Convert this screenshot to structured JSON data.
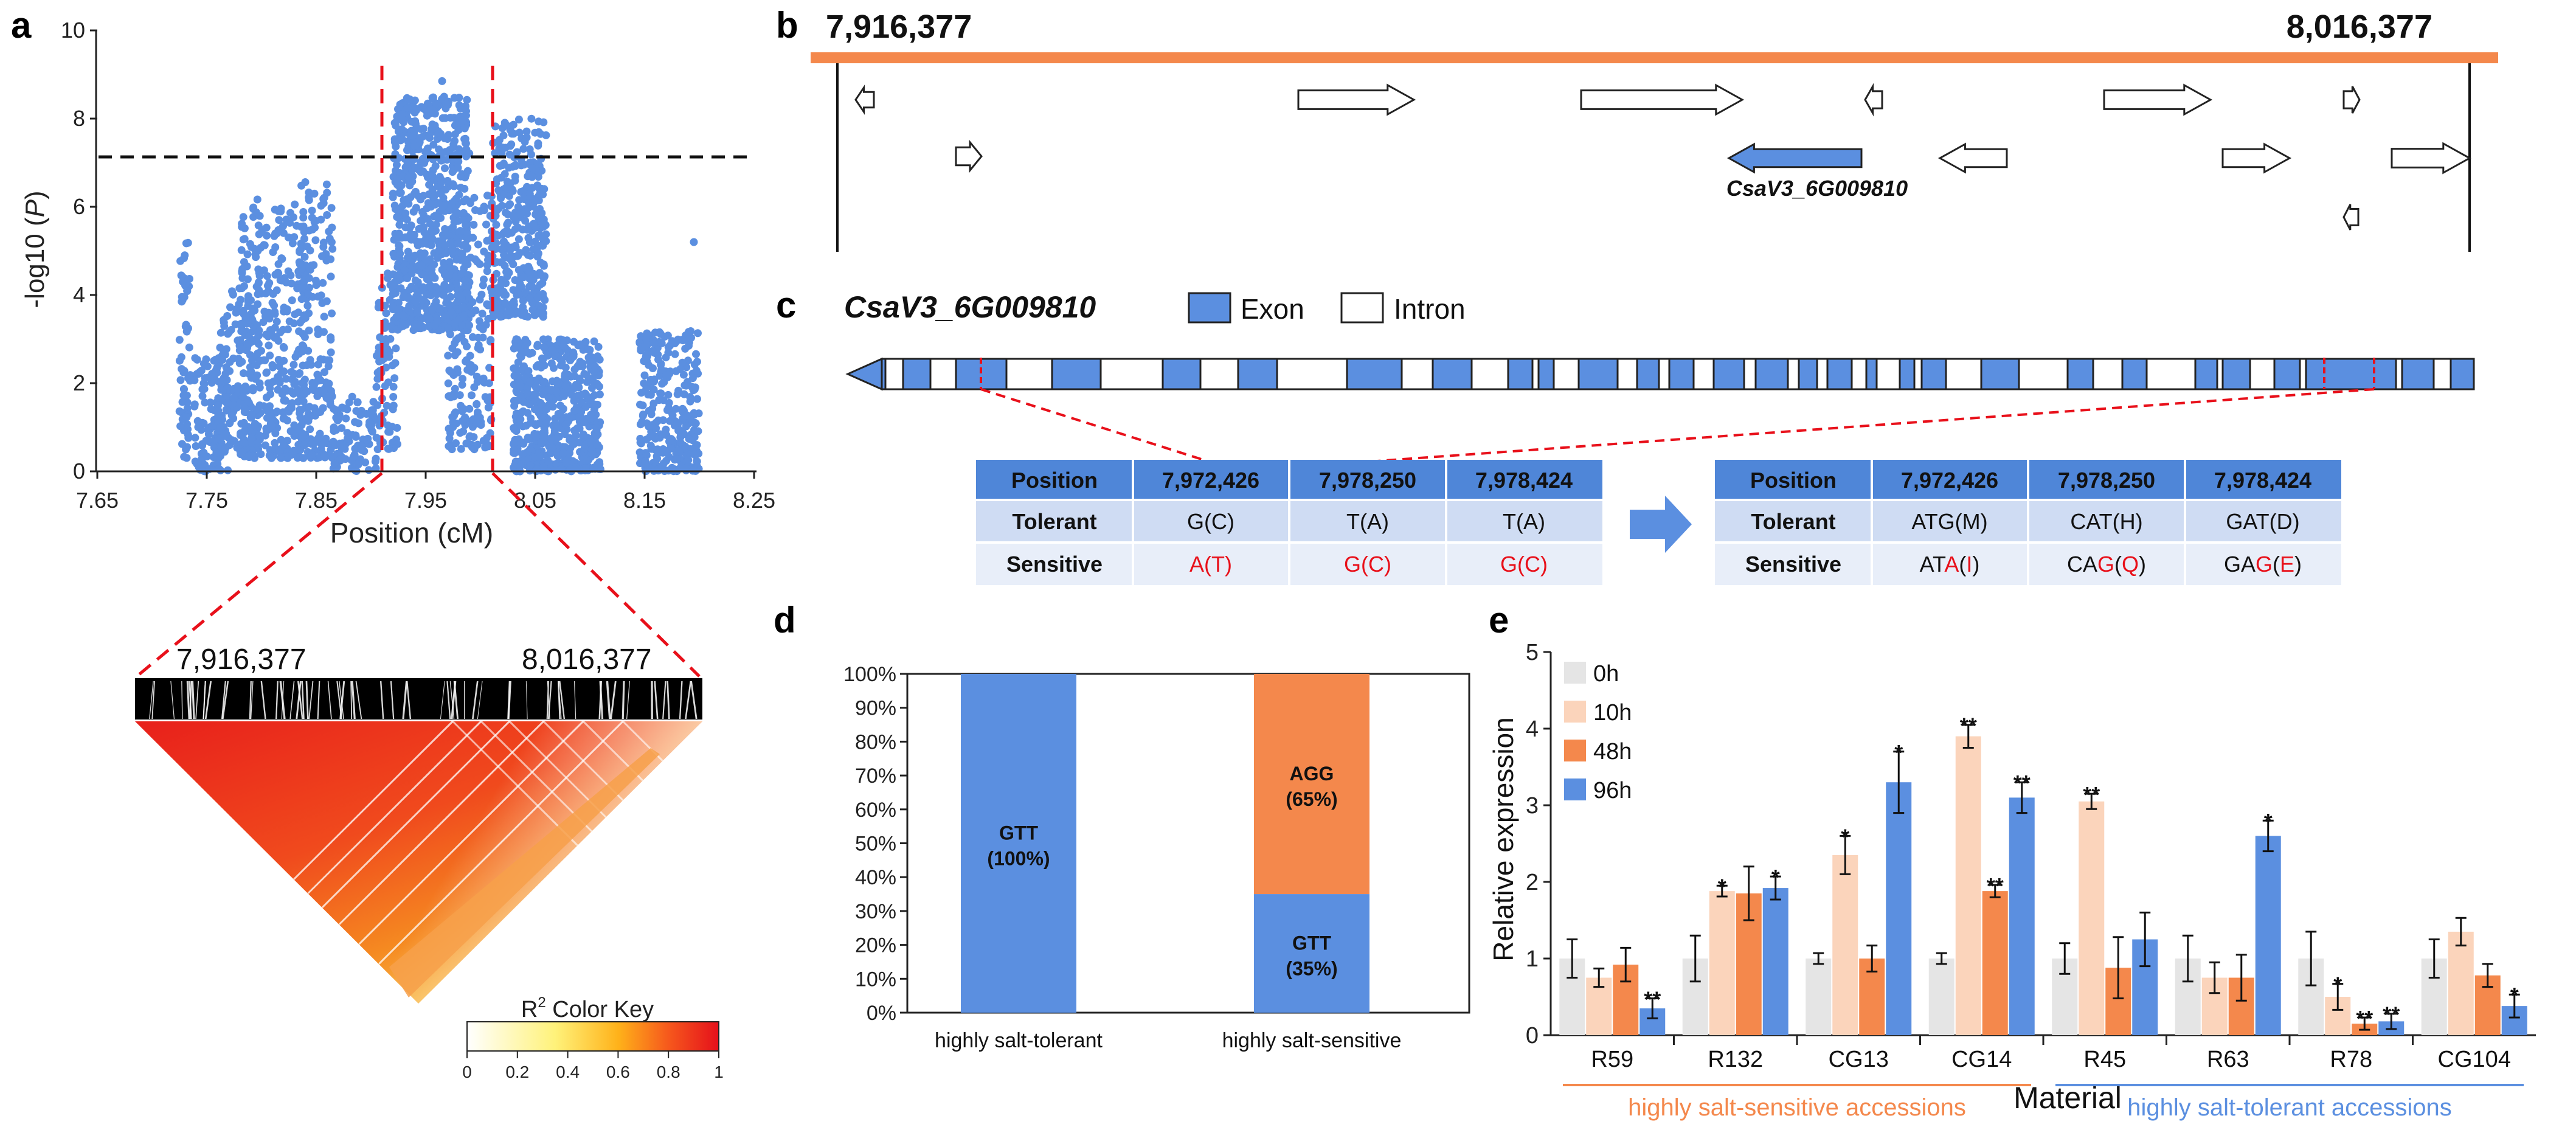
{
  "panel_letters": {
    "a": "a",
    "b": "b",
    "c": "c",
    "d": "d",
    "e": "e"
  },
  "colors": {
    "blue": "#5b8fe0",
    "orange": "#f4884c",
    "light_orange": "#fbd4bb",
    "grey": "#e5e5e5",
    "red": "#e8101a"
  },
  "panel_b": {
    "start_label": "7,916,377",
    "end_label": "8,016,377",
    "gene_label": "CsaV3_6G009810"
  },
  "panel_c": {
    "gene_title": "CsaV3_6G009810",
    "legend": {
      "exon": "Exon",
      "intron": "Intron"
    },
    "table_left": {
      "header": [
        "Position",
        "7,972,426",
        "7,978,250",
        "7,978,424"
      ],
      "tolerant": [
        "Tolerant",
        "G(C)",
        "T(A)",
        "T(A)"
      ],
      "sensitive_label": "Sensitive",
      "sensitive": [
        {
          "a": "A",
          "b": "(T)"
        },
        {
          "a": "G",
          "b": "(C)"
        },
        {
          "a": "G",
          "b": "(C)"
        }
      ]
    },
    "table_right": {
      "header": [
        "Position",
        "7,972,426",
        "7,978,250",
        "7,978,424"
      ],
      "tolerant": [
        "Tolerant",
        "ATG(M)",
        "CAT(H)",
        "GAT(D)"
      ],
      "sensitive_label": "Sensitive",
      "sensitive": [
        {
          "p": "AT",
          "r1": "A",
          "m": "(",
          "r2": "I",
          "e": ")"
        },
        {
          "p": "CA",
          "r1": "G",
          "m": "(",
          "r2": "Q",
          "e": ")"
        },
        {
          "p": "GA",
          "r1": "G",
          "m": "(",
          "r2": "E",
          "e": ")"
        }
      ]
    }
  },
  "ld_block": {
    "start_label": "7,916,377",
    "end_label": "8,016,377",
    "color_key_title": "R2 Color Key",
    "r2": "R",
    "sup": "2",
    "key_rest": " Color Key",
    "key_ticks": [
      "0",
      "0.2",
      "0.4",
      "0.6",
      "0.8",
      "1"
    ]
  },
  "chart_data": [
    {
      "id": "manhattan",
      "type": "scatter",
      "xlabel": "Position (cM)",
      "ylabel_prefix": "-log10 (",
      "ylabel_italic": "P",
      "ylabel_suffix": ")",
      "xlim": [
        7.65,
        8.25
      ],
      "ylim": [
        0,
        10
      ],
      "xticks": [
        "7.65",
        "7.75",
        "7.85",
        "7.95",
        "8.05",
        "8.15",
        "8.25"
      ],
      "yticks": [
        "0",
        "2",
        "4",
        "6",
        "8",
        "10"
      ],
      "threshold": 7.1,
      "region_lines_cm": [
        7.913,
        8.015
      ],
      "clusters": [
        {
          "x": [
            7.725,
            7.735
          ],
          "y": [
            0.3,
            5.2
          ],
          "n": 60
        },
        {
          "x": [
            7.738,
            7.77
          ],
          "y": [
            0,
            2.6
          ],
          "n": 120
        },
        {
          "x": [
            7.76,
            7.8
          ],
          "y": [
            0.5,
            4.2
          ],
          "n": 150
        },
        {
          "x": [
            7.78,
            7.84
          ],
          "y": [
            0.3,
            6.2
          ],
          "n": 380
        },
        {
          "x": [
            7.835,
            7.865
          ],
          "y": [
            0.3,
            6.6
          ],
          "n": 180
        },
        {
          "x": [
            7.865,
            7.905
          ],
          "y": [
            0,
            1.7
          ],
          "n": 90
        },
        {
          "x": [
            7.905,
            7.925
          ],
          "y": [
            0.5,
            4.5
          ],
          "n": 90
        },
        {
          "x": [
            7.92,
            7.99
          ],
          "y": [
            3.2,
            8.5
          ],
          "n": 700
        },
        {
          "x": [
            7.97,
            8.01
          ],
          "y": [
            0.5,
            6.3
          ],
          "n": 200
        },
        {
          "x": [
            8.01,
            8.06
          ],
          "y": [
            3.5,
            8.0
          ],
          "n": 360
        },
        {
          "x": [
            8.03,
            8.11
          ],
          "y": [
            0,
            3.0
          ],
          "n": 560
        },
        {
          "x": [
            8.145,
            8.2
          ],
          "y": [
            0,
            3.2
          ],
          "n": 290
        }
      ]
    },
    {
      "id": "stacked_bar",
      "type": "bar",
      "categories": [
        "highly salt-tolerant",
        "highly salt-sensitive"
      ],
      "series": [
        {
          "name": "GTT",
          "values": [
            100,
            35
          ],
          "labels": [
            "GTT",
            "GTT"
          ],
          "pct_labels": [
            "(100%)",
            "(35%)"
          ]
        },
        {
          "name": "AGG",
          "values": [
            0,
            65
          ],
          "labels": [
            "",
            "AGG"
          ],
          "pct_labels": [
            "",
            "(65%)"
          ]
        }
      ],
      "ylim": [
        0,
        100
      ],
      "yticks": [
        "0%",
        "10%",
        "20%",
        "30%",
        "40%",
        "50%",
        "60%",
        "70%",
        "80%",
        "90%",
        "100%"
      ]
    },
    {
      "id": "expression",
      "type": "bar",
      "title": "",
      "xlabel": "Material",
      "ylabel": "Relative expression",
      "ylim": [
        0,
        5
      ],
      "yticks": [
        "0",
        "1",
        "2",
        "3",
        "4",
        "5"
      ],
      "categories": [
        "R59",
        "R132",
        "CG13",
        "CG14",
        "R45",
        "R63",
        "R78",
        "CG104"
      ],
      "series": [
        {
          "name": "0h",
          "values": [
            1.0,
            1.0,
            1.0,
            1.0,
            1.0,
            1.0,
            1.0,
            1.0
          ],
          "errors": [
            0.25,
            0.3,
            0.07,
            0.07,
            0.2,
            0.3,
            0.35,
            0.25
          ],
          "sig": [
            "",
            "",
            "",
            "",
            "",
            "",
            "",
            ""
          ]
        },
        {
          "name": "10h",
          "values": [
            0.75,
            1.88,
            2.35,
            3.9,
            3.05,
            0.75,
            0.5,
            1.35
          ],
          "errors": [
            0.12,
            0.07,
            0.25,
            0.15,
            0.1,
            0.2,
            0.17,
            0.18
          ],
          "sig": [
            "",
            "*",
            "*",
            "**",
            "**",
            "",
            "*",
            ""
          ]
        },
        {
          "name": "48h",
          "values": [
            0.92,
            1.85,
            1.0,
            1.88,
            0.88,
            0.75,
            0.15,
            0.78
          ],
          "errors": [
            0.22,
            0.35,
            0.17,
            0.08,
            0.4,
            0.3,
            0.08,
            0.15
          ],
          "sig": [
            "",
            "",
            "",
            "**",
            "",
            "",
            "**",
            ""
          ]
        },
        {
          "name": "96h",
          "values": [
            0.35,
            1.92,
            3.3,
            3.1,
            1.25,
            2.6,
            0.18,
            0.38
          ],
          "errors": [
            0.13,
            0.15,
            0.4,
            0.2,
            0.35,
            0.2,
            0.1,
            0.15
          ],
          "sig": [
            "**",
            "*",
            "*",
            "**",
            "",
            "*",
            "**",
            "*"
          ]
        }
      ],
      "group_labels": [
        {
          "text": "highly salt-sensitive accessions",
          "color": "#f4884c",
          "span": [
            0,
            3
          ]
        },
        {
          "text": "highly salt-tolerant accessions",
          "color": "#5b8fe0",
          "span": [
            4,
            7
          ]
        }
      ]
    }
  ]
}
